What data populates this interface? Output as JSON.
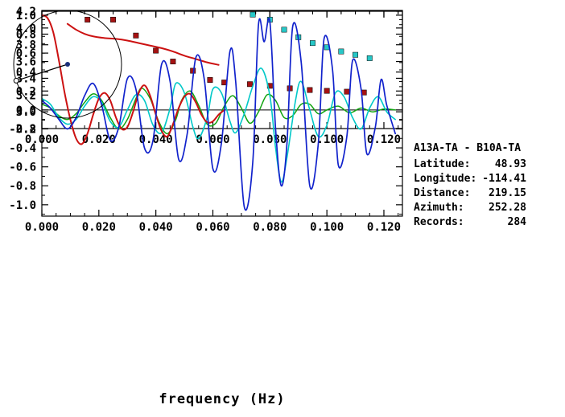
{
  "info_panel": {
    "station_pair": "A13A-TA - B10A-TA",
    "fields": [
      {
        "label": "Latitude:",
        "value": "48.93"
      },
      {
        "label": "Longitude:",
        "value": "-114.41"
      },
      {
        "label": "Distance:",
        "value": "219.15"
      },
      {
        "label": "Azimuth:",
        "value": "252.28"
      },
      {
        "label": "Records:",
        "value": "284"
      }
    ]
  },
  "azimuth_diagram": {
    "azimuth_deg": 252.28,
    "circle_color": "#000000",
    "line_color": "#000000",
    "center_dot_color": "#1a2e7a"
  },
  "colors": {
    "axis": "#000000",
    "tick_text": "#000000"
  },
  "chart_data": [
    {
      "type": "scatter",
      "name": "dispersion-panel",
      "title": "",
      "xlabel": "",
      "ylabel": "",
      "xlim": [
        0,
        0.1265
      ],
      "ylim": [
        2.8,
        4.2
      ],
      "grid": false,
      "zero_line": false,
      "x_minor_step": 0.005,
      "y_minor_step": 0.1,
      "x_ticks": [
        {
          "v": 0,
          "label": "0.000"
        },
        {
          "v": 0.02,
          "label": "0.020"
        },
        {
          "v": 0.04,
          "label": "0.040"
        },
        {
          "v": 0.06,
          "label": "0.060"
        },
        {
          "v": 0.08,
          "label": "0.080"
        },
        {
          "v": 0.1,
          "label": "0.100"
        },
        {
          "v": 0.12,
          "label": "0.120"
        }
      ],
      "y_ticks": [
        {
          "v": 2.8,
          "label": "2.8"
        },
        {
          "v": 3.0,
          "label": "3.0"
        },
        {
          "v": 3.2,
          "label": "3.2"
        },
        {
          "v": 3.4,
          "label": "3.4"
        },
        {
          "v": 3.6,
          "label": "3.6"
        },
        {
          "v": 3.8,
          "label": "3.8"
        },
        {
          "v": 4.0,
          "label": "4.0"
        },
        {
          "v": 4.2,
          "label": "4.2"
        }
      ],
      "series": [
        {
          "name": "red-square-picks",
          "type": "markers",
          "marker": "square",
          "color": "#a51212",
          "points": [
            [
              0.016,
              4.1
            ],
            [
              0.025,
              4.1
            ],
            [
              0.033,
              3.91
            ],
            [
              0.04,
              3.73
            ],
            [
              0.046,
              3.6
            ],
            [
              0.053,
              3.49
            ],
            [
              0.059,
              3.38
            ],
            [
              0.064,
              3.35
            ],
            [
              0.073,
              3.33
            ],
            [
              0.08,
              3.31
            ],
            [
              0.087,
              3.28
            ],
            [
              0.094,
              3.26
            ],
            [
              0.1,
              3.25
            ],
            [
              0.107,
              3.24
            ],
            [
              0.113,
              3.23
            ]
          ]
        },
        {
          "name": "cyan-square-picks",
          "type": "markers",
          "marker": "square",
          "color": "#27c7c7",
          "points": [
            [
              0.074,
              4.16
            ],
            [
              0.08,
              4.1
            ],
            [
              0.085,
              3.98
            ],
            [
              0.09,
              3.89
            ],
            [
              0.095,
              3.82
            ],
            [
              0.1,
              3.77
            ],
            [
              0.105,
              3.72
            ],
            [
              0.11,
              3.68
            ],
            [
              0.115,
              3.64
            ]
          ]
        },
        {
          "name": "reference-dispersion-curve",
          "type": "line",
          "color": "#cc1111",
          "width": 2,
          "points": [
            [
              0.009,
              4.05
            ],
            [
              0.012,
              3.98
            ],
            [
              0.015,
              3.93
            ],
            [
              0.018,
              3.9
            ],
            [
              0.022,
              3.88
            ],
            [
              0.026,
              3.87
            ],
            [
              0.03,
              3.85
            ],
            [
              0.034,
              3.82
            ],
            [
              0.038,
              3.79
            ],
            [
              0.042,
              3.76
            ],
            [
              0.046,
              3.72
            ],
            [
              0.05,
              3.67
            ],
            [
              0.054,
              3.63
            ],
            [
              0.058,
              3.59
            ],
            [
              0.062,
              3.56
            ]
          ]
        }
      ]
    },
    {
      "type": "line",
      "name": "waveform-panel",
      "title": "",
      "xlabel": "frequency (Hz)",
      "ylabel": "",
      "xlim": [
        0,
        0.1265
      ],
      "ylim": [
        -1.12,
        1.05
      ],
      "grid": false,
      "zero_line": true,
      "x_minor_step": 0.005,
      "y_minor_step": 0.1,
      "x_ticks": [
        {
          "v": 0,
          "label": "0.000"
        },
        {
          "v": 0.02,
          "label": "0.020"
        },
        {
          "v": 0.04,
          "label": "0.040"
        },
        {
          "v": 0.06,
          "label": "0.060"
        },
        {
          "v": 0.08,
          "label": "0.080"
        },
        {
          "v": 0.1,
          "label": "0.100"
        },
        {
          "v": 0.12,
          "label": "0.120"
        }
      ],
      "y_ticks": [
        {
          "v": -1.0,
          "label": "-1.0"
        },
        {
          "v": -0.8,
          "label": "-0.8"
        },
        {
          "v": -0.6,
          "label": "-0.6"
        },
        {
          "v": -0.4,
          "label": "-0.4"
        },
        {
          "v": -0.2,
          "label": "-0.2"
        },
        {
          "v": 0.0,
          "label": "0.0"
        },
        {
          "v": 0.2,
          "label": "0.2"
        },
        {
          "v": 0.4,
          "label": "0.4"
        },
        {
          "v": 0.6,
          "label": "0.6"
        },
        {
          "v": 0.8,
          "label": "0.8"
        },
        {
          "v": 1.0,
          "label": "1.0"
        }
      ],
      "series": [
        {
          "name": "green-trace",
          "type": "line",
          "color": "#11a411",
          "width": 1.5,
          "points": [
            [
              0.0,
              0.06
            ],
            [
              0.003,
              0.02
            ],
            [
              0.006,
              -0.06
            ],
            [
              0.009,
              -0.1
            ],
            [
              0.012,
              -0.04
            ],
            [
              0.015,
              0.08
            ],
            [
              0.018,
              0.17
            ],
            [
              0.021,
              0.1
            ],
            [
              0.024,
              -0.08
            ],
            [
              0.027,
              -0.2
            ],
            [
              0.03,
              -0.1
            ],
            [
              0.033,
              0.12
            ],
            [
              0.035,
              0.23
            ],
            [
              0.038,
              0.12
            ],
            [
              0.041,
              -0.12
            ],
            [
              0.044,
              -0.25
            ],
            [
              0.047,
              -0.1
            ],
            [
              0.049,
              0.1
            ],
            [
              0.052,
              0.2
            ],
            [
              0.055,
              0.05
            ],
            [
              0.058,
              -0.15
            ],
            [
              0.061,
              -0.14
            ],
            [
              0.064,
              0.04
            ],
            [
              0.067,
              0.15
            ],
            [
              0.07,
              0.02
            ],
            [
              0.073,
              -0.14
            ],
            [
              0.076,
              -0.02
            ],
            [
              0.079,
              0.16
            ],
            [
              0.082,
              0.1
            ],
            [
              0.085,
              -0.08
            ],
            [
              0.088,
              -0.06
            ],
            [
              0.091,
              0.06
            ],
            [
              0.094,
              0.06
            ],
            [
              0.097,
              -0.04
            ],
            [
              0.1,
              0.0
            ],
            [
              0.104,
              0.04
            ],
            [
              0.108,
              -0.03
            ],
            [
              0.112,
              0.02
            ],
            [
              0.116,
              -0.02
            ],
            [
              0.12,
              0.01
            ],
            [
              0.124,
              0.0
            ]
          ]
        },
        {
          "name": "cyan-trace",
          "type": "line",
          "color": "#00c8c8",
          "width": 1.6,
          "points": [
            [
              0.0,
              0.12
            ],
            [
              0.003,
              0.06
            ],
            [
              0.006,
              -0.08
            ],
            [
              0.009,
              -0.15
            ],
            [
              0.012,
              -0.1
            ],
            [
              0.015,
              0.04
            ],
            [
              0.018,
              0.14
            ],
            [
              0.021,
              0.08
            ],
            [
              0.024,
              -0.12
            ],
            [
              0.027,
              -0.18
            ],
            [
              0.03,
              0.0
            ],
            [
              0.033,
              0.16
            ],
            [
              0.036,
              0.1
            ],
            [
              0.039,
              -0.16
            ],
            [
              0.042,
              -0.24
            ],
            [
              0.045,
              0.02
            ],
            [
              0.047,
              0.28
            ],
            [
              0.05,
              0.18
            ],
            [
              0.053,
              -0.18
            ],
            [
              0.055,
              -0.3
            ],
            [
              0.058,
              -0.08
            ],
            [
              0.06,
              0.22
            ],
            [
              0.063,
              0.18
            ],
            [
              0.066,
              -0.12
            ],
            [
              0.068,
              -0.24
            ],
            [
              0.071,
              -0.04
            ],
            [
              0.074,
              0.25
            ],
            [
              0.077,
              0.44
            ],
            [
              0.08,
              0.15
            ],
            [
              0.082,
              -0.4
            ],
            [
              0.084,
              -0.76
            ],
            [
              0.086,
              -0.5
            ],
            [
              0.089,
              0.1
            ],
            [
              0.091,
              0.3
            ],
            [
              0.094,
              0.0
            ],
            [
              0.097,
              -0.28
            ],
            [
              0.1,
              -0.16
            ],
            [
              0.103,
              0.18
            ],
            [
              0.106,
              0.14
            ],
            [
              0.109,
              -0.08
            ],
            [
              0.112,
              -0.2
            ],
            [
              0.115,
              0.02
            ],
            [
              0.118,
              0.14
            ],
            [
              0.121,
              -0.02
            ],
            [
              0.124,
              -0.1
            ]
          ]
        },
        {
          "name": "red-trace",
          "type": "line",
          "color": "#cc1111",
          "width": 2,
          "points": [
            [
              0.0,
              1.0
            ],
            [
              0.002,
              0.97
            ],
            [
              0.004,
              0.82
            ],
            [
              0.006,
              0.52
            ],
            [
              0.008,
              0.18
            ],
            [
              0.01,
              -0.1
            ],
            [
              0.012,
              -0.3
            ],
            [
              0.014,
              -0.36
            ],
            [
              0.016,
              -0.25
            ],
            [
              0.018,
              -0.05
            ],
            [
              0.02,
              0.12
            ],
            [
              0.022,
              0.18
            ],
            [
              0.024,
              0.1
            ],
            [
              0.026,
              -0.08
            ],
            [
              0.028,
              -0.2
            ],
            [
              0.03,
              -0.18
            ],
            [
              0.032,
              -0.02
            ],
            [
              0.034,
              0.18
            ],
            [
              0.036,
              0.26
            ],
            [
              0.038,
              0.15
            ],
            [
              0.04,
              -0.05
            ],
            [
              0.042,
              -0.22
            ],
            [
              0.044,
              -0.28
            ],
            [
              0.046,
              -0.15
            ],
            [
              0.048,
              0.02
            ],
            [
              0.05,
              0.14
            ],
            [
              0.052,
              0.17
            ],
            [
              0.054,
              0.08
            ],
            [
              0.056,
              -0.05
            ],
            [
              0.058,
              -0.13
            ],
            [
              0.06,
              -0.12
            ],
            [
              0.062,
              -0.05
            ],
            [
              0.064,
              0.0
            ]
          ]
        },
        {
          "name": "blue-trace",
          "type": "line",
          "color": "#1122cc",
          "width": 1.7,
          "points": [
            [
              0.0,
              0.1
            ],
            [
              0.003,
              0.02
            ],
            [
              0.006,
              -0.1
            ],
            [
              0.009,
              -0.2
            ],
            [
              0.012,
              -0.08
            ],
            [
              0.015,
              0.15
            ],
            [
              0.018,
              0.28
            ],
            [
              0.021,
              0.05
            ],
            [
              0.024,
              -0.32
            ],
            [
              0.027,
              -0.18
            ],
            [
              0.03,
              0.33
            ],
            [
              0.033,
              0.22
            ],
            [
              0.036,
              -0.4
            ],
            [
              0.039,
              -0.32
            ],
            [
              0.042,
              0.48
            ],
            [
              0.045,
              0.3
            ],
            [
              0.048,
              -0.52
            ],
            [
              0.051,
              -0.25
            ],
            [
              0.054,
              0.55
            ],
            [
              0.057,
              0.32
            ],
            [
              0.06,
              -0.62
            ],
            [
              0.063,
              -0.35
            ],
            [
              0.066,
              0.62
            ],
            [
              0.068,
              0.3
            ],
            [
              0.071,
              -1.02
            ],
            [
              0.074,
              -0.55
            ],
            [
              0.076,
              0.9
            ],
            [
              0.078,
              0.72
            ],
            [
              0.08,
              0.93
            ],
            [
              0.082,
              -0.2
            ],
            [
              0.084,
              -0.8
            ],
            [
              0.086,
              -0.35
            ],
            [
              0.088,
              0.88
            ],
            [
              0.091,
              0.5
            ],
            [
              0.094,
              -0.8
            ],
            [
              0.097,
              -0.35
            ],
            [
              0.099,
              0.75
            ],
            [
              0.102,
              0.42
            ],
            [
              0.104,
              -0.58
            ],
            [
              0.107,
              -0.28
            ],
            [
              0.109,
              0.52
            ],
            [
              0.112,
              0.22
            ],
            [
              0.114,
              -0.46
            ],
            [
              0.117,
              -0.18
            ],
            [
              0.119,
              0.32
            ],
            [
              0.121,
              0.05
            ],
            [
              0.124,
              -0.25
            ]
          ]
        }
      ]
    }
  ]
}
